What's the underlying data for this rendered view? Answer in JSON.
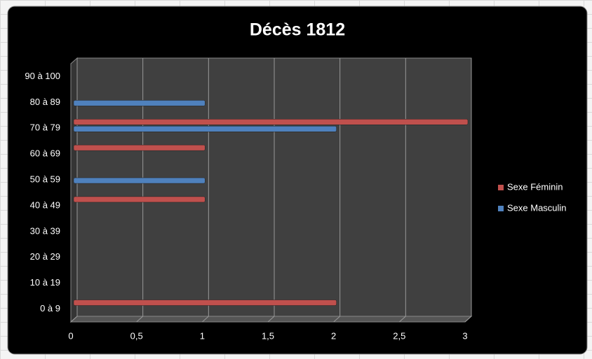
{
  "chart_data": {
    "type": "bar",
    "orientation": "horizontal",
    "title": "Décès 1812",
    "categories": [
      "0 à 9",
      "10 à 19",
      "20 à 29",
      "30 à 39",
      "40 à 49",
      "50 à 59",
      "60 à 69",
      "70 à 79",
      "80 à 89",
      "90 à 100"
    ],
    "series": [
      {
        "name": "Sexe Féminin",
        "color": "#c0504d",
        "values": [
          2,
          null,
          null,
          null,
          1,
          null,
          1,
          3,
          null,
          null
        ]
      },
      {
        "name": "Sexe Masculin",
        "color": "#4f81bd",
        "values": [
          null,
          null,
          null,
          null,
          null,
          1,
          null,
          2,
          1,
          null
        ]
      }
    ],
    "xlim": [
      0,
      3
    ],
    "xticks": [
      0,
      {
        "value": 0.5,
        "label": "0,5"
      },
      1,
      {
        "value": 1.5,
        "label": "1,5"
      },
      2,
      {
        "value": 2.5,
        "label": "2,5"
      },
      3
    ],
    "grid": true,
    "legend": "right"
  }
}
